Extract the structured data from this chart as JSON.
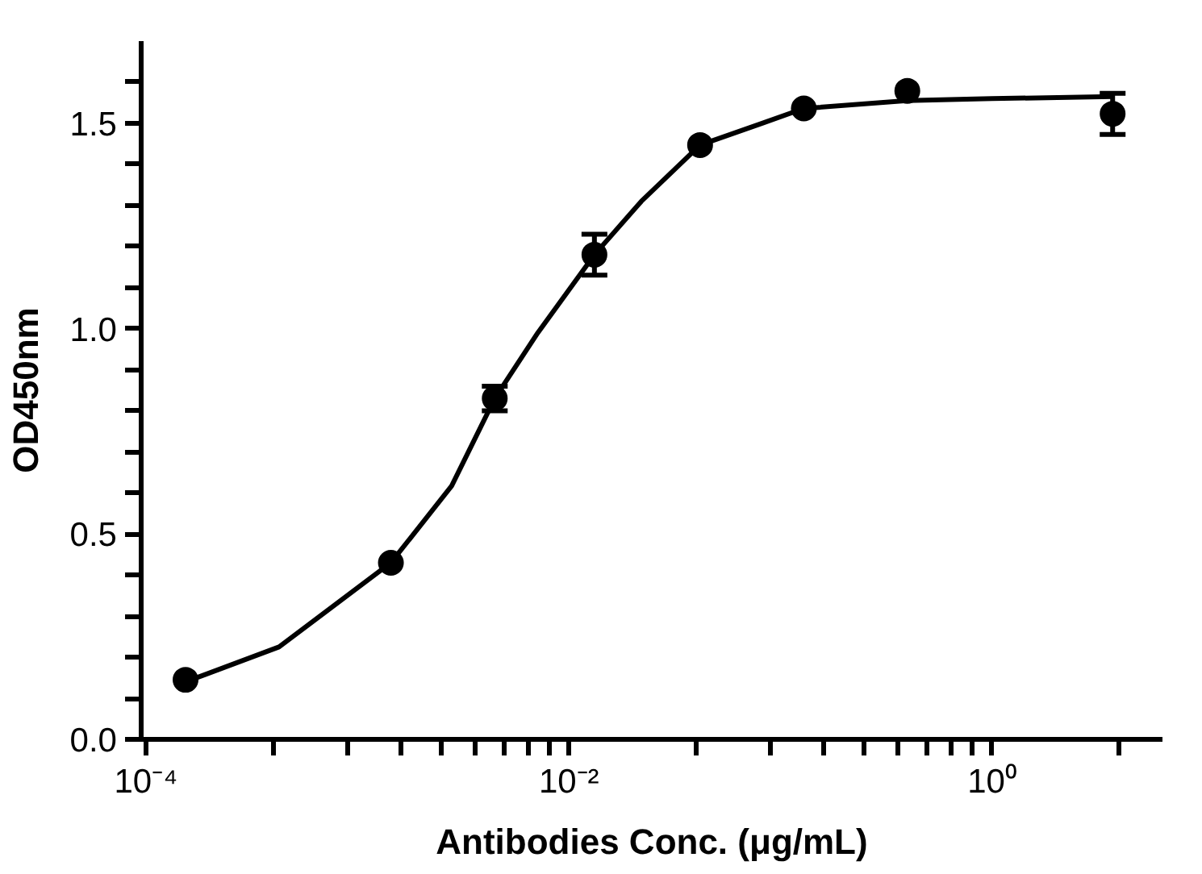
{
  "chart_data": {
    "type": "scatter",
    "xlabel": "Antibodies Conc. (μg/mL)",
    "ylabel": "OD450nm",
    "log": "x",
    "grid": false,
    "xlim": [
      9.5e-05,
      6.4
    ],
    "ylim": [
      0,
      1.7
    ],
    "xticks": [
      {
        "value": 0.0001,
        "label": "10⁻⁴"
      },
      {
        "value": 0.0004,
        "label": null
      },
      {
        "value": 0.0009,
        "label": null
      },
      {
        "value": 0.0016,
        "label": null
      },
      {
        "value": 0.0025,
        "label": null
      },
      {
        "value": 0.0036,
        "label": null
      },
      {
        "value": 0.0049,
        "label": null
      },
      {
        "value": 0.0064,
        "label": null
      },
      {
        "value": 0.0081,
        "label": null
      },
      {
        "value": 0.01,
        "label": "10⁻²"
      },
      {
        "value": 0.04,
        "label": null
      },
      {
        "value": 0.09,
        "label": null
      },
      {
        "value": 0.16,
        "label": null
      },
      {
        "value": 0.25,
        "label": null
      },
      {
        "value": 0.36,
        "label": null
      },
      {
        "value": 0.49,
        "label": null
      },
      {
        "value": 0.64,
        "label": null
      },
      {
        "value": 0.81,
        "label": null
      },
      {
        "value": 1,
        "label": "10⁰"
      },
      {
        "value": 4,
        "label": null
      }
    ],
    "yticks": [
      {
        "value": 0,
        "label": "0.0"
      },
      {
        "value": 0.1,
        "label": null
      },
      {
        "value": 0.2,
        "label": null
      },
      {
        "value": 0.3,
        "label": null
      },
      {
        "value": 0.4,
        "label": null
      },
      {
        "value": 0.5,
        "label": "0.5"
      },
      {
        "value": 0.6,
        "label": null
      },
      {
        "value": 0.7,
        "label": null
      },
      {
        "value": 0.8,
        "label": null
      },
      {
        "value": 0.9,
        "label": null
      },
      {
        "value": 1.0,
        "label": "1.0"
      },
      {
        "value": 1.1,
        "label": null
      },
      {
        "value": 1.2,
        "label": null
      },
      {
        "value": 1.3,
        "label": null
      },
      {
        "value": 1.4,
        "label": null
      },
      {
        "value": 1.5,
        "label": "1.5"
      },
      {
        "value": 1.6,
        "label": null
      }
    ],
    "series": [
      {
        "type": "line",
        "color": "#000000",
        "marker": "none",
        "line_style": "solid",
        "x": [
          0.000154,
          0.000426,
          0.00144,
          0.00279,
          0.00446,
          0.00713,
          0.0132,
          0.022,
          0.0417,
          0.082,
          0.129,
          0.398,
          1,
          3.72
        ],
        "values": [
          0.14,
          0.225,
          0.43,
          0.617,
          0.83,
          0.99,
          1.18,
          1.31,
          1.447,
          1.5,
          1.536,
          1.555,
          1.56,
          1.565
        ]
      },
      {
        "color": "#000000",
        "marker": "circle",
        "x": [
          0.000154,
          0.00144,
          0.00446,
          0.0132,
          0.0417,
          0.129,
          0.398,
          3.72
        ],
        "values": [
          0.145,
          0.43,
          0.83,
          1.18,
          1.447,
          1.536,
          1.579,
          1.523
        ],
        "errors": [
          null,
          null,
          0.03,
          0.05,
          null,
          null,
          null,
          0.05
        ]
      }
    ]
  }
}
